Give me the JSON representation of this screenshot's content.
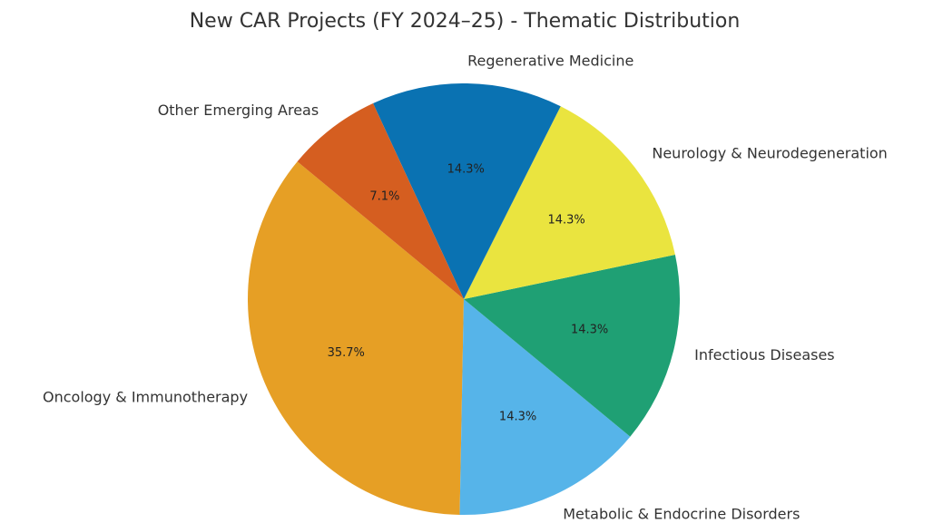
{
  "chart_data": {
    "type": "pie",
    "title": "New CAR Projects (FY 2024–25) - Thematic Distribution",
    "categories": [
      "Oncology & Immunotherapy",
      "Metabolic & Endocrine Disorders",
      "Infectious Diseases",
      "Neurology & Neurodegeneration",
      "Regenerative Medicine",
      "Other Emerging Areas"
    ],
    "values": [
      35.7,
      14.3,
      14.3,
      14.3,
      14.3,
      7.1
    ],
    "value_labels": [
      "35.7%",
      "14.3%",
      "14.3%",
      "14.3%",
      "14.3%",
      "7.1%"
    ],
    "colors": [
      "#E69F25",
      "#56B4E9",
      "#1FA074",
      "#EAE43F",
      "#0A72B2",
      "#D55E20"
    ]
  }
}
